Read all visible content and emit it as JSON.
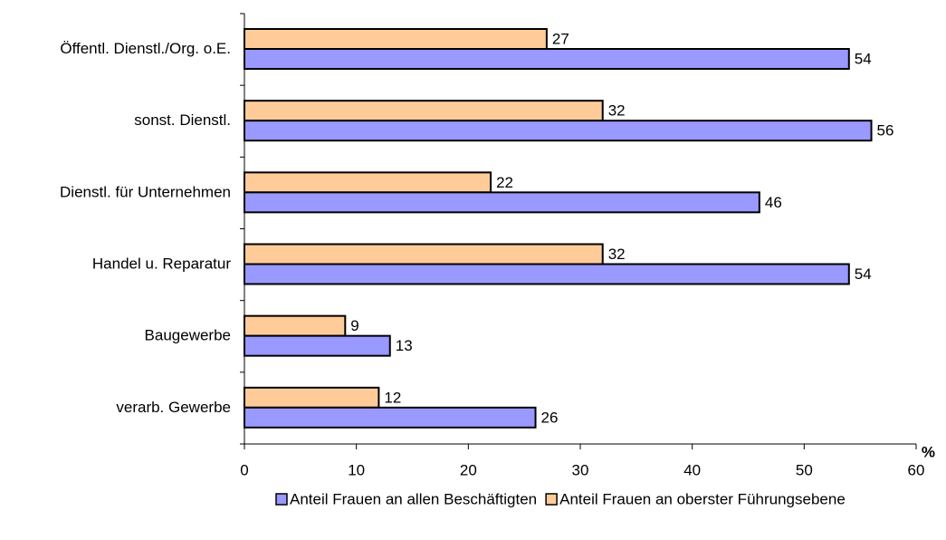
{
  "chart_data": {
    "type": "hbar",
    "categories": [
      "Öffentl. Dienstl./Org. o.E.",
      "sonst. Dienstl.",
      "Dienstl. für Unternehmen",
      "Handel u. Reparatur",
      "Baugewerbe",
      "verarb. Gewerbe"
    ],
    "series": [
      {
        "name": "Anteil Frauen an allen Beschäftigten",
        "color": "#9999ff",
        "values": [
          54,
          56,
          46,
          54,
          13,
          26
        ]
      },
      {
        "name": "Anteil Frauen an oberster Führungsebene",
        "color": "#ffcc99",
        "values": [
          27,
          32,
          22,
          32,
          9,
          12
        ]
      }
    ],
    "xlabel": "%",
    "xlim": [
      0,
      60
    ],
    "xticks": [
      0,
      10,
      20,
      30,
      40,
      50,
      60
    ]
  }
}
